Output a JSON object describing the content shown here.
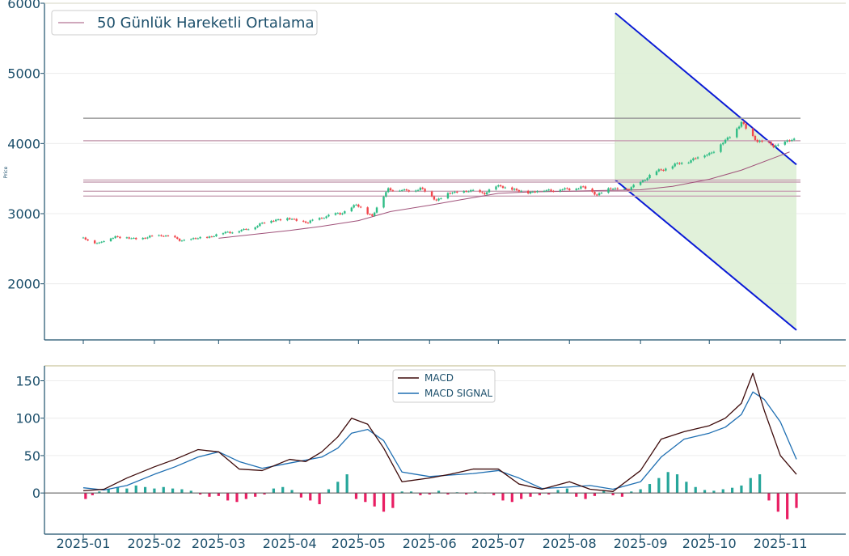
{
  "chart_data": [
    {
      "type": "candlestick",
      "ylabel": "Price",
      "ylim": [
        1200,
        6000
      ],
      "yticks": [
        2000,
        3000,
        4000,
        5000,
        6000
      ],
      "grid": true,
      "legend": {
        "placement": "top-left",
        "entries": [
          "50 Günlük Hareketli Ortalama"
        ]
      },
      "colors": {
        "up": "#2ebd85",
        "down": "#f2474d",
        "ma": "#a0527a",
        "channel": "#0a1ad6",
        "channel_fill": "#dff0d8",
        "hline_gray": "#999999",
        "hline_pink": "#c9a3b5",
        "axis": "#1c4f6b"
      },
      "horizontal_levels": [
        {
          "value": 4360,
          "style": "gray"
        },
        {
          "value": 4040,
          "style": "pink"
        },
        {
          "value": 3480,
          "style": "pink"
        },
        {
          "value": 3450,
          "style": "pink"
        },
        {
          "value": 3320,
          "style": "pink"
        },
        {
          "value": 3250,
          "style": "pink"
        }
      ],
      "channel": {
        "start_date": "2025-08-21",
        "end_date": "2025-11-08",
        "upper": [
          5860,
          3700
        ],
        "lower": [
          3480,
          1340
        ]
      },
      "close_series": {
        "x": [
          "2025-01-01",
          "2025-01-08",
          "2025-01-15",
          "2025-01-22",
          "2025-01-29",
          "2025-02-05",
          "2025-02-12",
          "2025-02-19",
          "2025-02-26",
          "2025-03-05",
          "2025-03-12",
          "2025-03-19",
          "2025-03-26",
          "2025-04-02",
          "2025-04-09",
          "2025-04-16",
          "2025-04-23",
          "2025-04-30",
          "2025-05-07",
          "2025-05-14",
          "2025-05-21",
          "2025-05-28",
          "2025-06-04",
          "2025-06-11",
          "2025-06-18",
          "2025-06-25",
          "2025-07-02",
          "2025-07-09",
          "2025-07-16",
          "2025-07-23",
          "2025-07-30",
          "2025-08-06",
          "2025-08-13",
          "2025-08-20",
          "2025-08-27",
          "2025-09-03",
          "2025-09-10",
          "2025-09-17",
          "2025-09-24",
          "2025-10-01",
          "2025-10-08",
          "2025-10-15",
          "2025-10-18",
          "2025-10-22",
          "2025-10-29",
          "2025-11-05"
        ],
        "y": [
          2640,
          2580,
          2680,
          2640,
          2660,
          2700,
          2620,
          2640,
          2680,
          2740,
          2760,
          2850,
          2920,
          2920,
          2870,
          2960,
          3000,
          3120,
          2970,
          3360,
          3320,
          3360,
          3200,
          3300,
          3320,
          3300,
          3400,
          3320,
          3310,
          3340,
          3340,
          3380,
          3280,
          3360,
          3340,
          3500,
          3630,
          3700,
          3780,
          3860,
          4030,
          4300,
          4150,
          4050,
          3960,
          4040
        ]
      },
      "moving_average": {
        "x": [
          "2025-03-01",
          "2025-03-15",
          "2025-04-01",
          "2025-04-15",
          "2025-05-01",
          "2025-05-15",
          "2025-06-01",
          "2025-06-15",
          "2025-07-01",
          "2025-07-15",
          "2025-08-01",
          "2025-08-15",
          "2025-09-01",
          "2025-09-15",
          "2025-10-01",
          "2025-10-15",
          "2025-11-01",
          "2025-11-05"
        ],
        "y": [
          2650,
          2700,
          2760,
          2820,
          2900,
          3030,
          3120,
          3200,
          3290,
          3310,
          3320,
          3330,
          3340,
          3390,
          3490,
          3620,
          3830,
          3880
        ]
      }
    },
    {
      "type": "line",
      "ylim": [
        -55,
        170
      ],
      "yticks": [
        0,
        50,
        100,
        150
      ],
      "grid": true,
      "xticks": [
        "2025-01",
        "2025-02",
        "2025-03",
        "2025-04",
        "2025-05",
        "2025-06",
        "2025-07",
        "2025-08",
        "2025-09",
        "2025-10",
        "2025-11"
      ],
      "legend": {
        "placement": "top-center"
      },
      "series": [
        {
          "name": "MACD",
          "color": "#3d0a0a",
          "x": [
            "2025-01-01",
            "2025-01-10",
            "2025-01-20",
            "2025-02-01",
            "2025-02-10",
            "2025-02-20",
            "2025-03-01",
            "2025-03-10",
            "2025-03-20",
            "2025-04-01",
            "2025-04-08",
            "2025-04-15",
            "2025-04-22",
            "2025-04-28",
            "2025-05-05",
            "2025-05-12",
            "2025-05-20",
            "2025-06-01",
            "2025-06-10",
            "2025-06-20",
            "2025-07-01",
            "2025-07-10",
            "2025-07-20",
            "2025-08-01",
            "2025-08-10",
            "2025-08-20",
            "2025-09-01",
            "2025-09-10",
            "2025-09-20",
            "2025-10-01",
            "2025-10-08",
            "2025-10-15",
            "2025-10-20",
            "2025-10-25",
            "2025-11-01",
            "2025-11-08"
          ],
          "y": [
            3,
            5,
            20,
            35,
            45,
            58,
            55,
            32,
            30,
            45,
            42,
            55,
            75,
            100,
            92,
            60,
            15,
            20,
            25,
            32,
            32,
            12,
            5,
            15,
            5,
            2,
            30,
            72,
            82,
            90,
            100,
            120,
            160,
            110,
            50,
            25
          ]
        },
        {
          "name": "MACD SIGNAL",
          "color": "#1f6fb2",
          "x": [
            "2025-01-01",
            "2025-01-10",
            "2025-01-20",
            "2025-02-01",
            "2025-02-10",
            "2025-02-20",
            "2025-03-01",
            "2025-03-10",
            "2025-03-20",
            "2025-04-01",
            "2025-04-08",
            "2025-04-15",
            "2025-04-22",
            "2025-04-28",
            "2025-05-05",
            "2025-05-12",
            "2025-05-20",
            "2025-06-01",
            "2025-06-10",
            "2025-06-20",
            "2025-07-01",
            "2025-07-10",
            "2025-07-20",
            "2025-08-01",
            "2025-08-10",
            "2025-08-20",
            "2025-09-01",
            "2025-09-10",
            "2025-09-20",
            "2025-10-01",
            "2025-10-08",
            "2025-10-15",
            "2025-10-20",
            "2025-10-25",
            "2025-11-01",
            "2025-11-08"
          ],
          "y": [
            7,
            4,
            10,
            25,
            35,
            48,
            55,
            42,
            33,
            40,
            44,
            48,
            60,
            80,
            85,
            70,
            28,
            22,
            24,
            26,
            30,
            20,
            6,
            8,
            10,
            5,
            15,
            48,
            72,
            80,
            88,
            105,
            135,
            125,
            95,
            45
          ]
        },
        {
          "name": "",
          "type": "bar",
          "colors": {
            "positive": "#26a69a",
            "negative": "#e91e63"
          },
          "x": [
            "2025-01-02",
            "2025-01-05",
            "2025-01-08",
            "2025-01-12",
            "2025-01-16",
            "2025-01-20",
            "2025-01-24",
            "2025-01-28",
            "2025-02-01",
            "2025-02-05",
            "2025-02-09",
            "2025-02-13",
            "2025-02-17",
            "2025-02-21",
            "2025-02-25",
            "2025-03-01",
            "2025-03-05",
            "2025-03-09",
            "2025-03-13",
            "2025-03-17",
            "2025-03-21",
            "2025-03-25",
            "2025-03-29",
            "2025-04-02",
            "2025-04-06",
            "2025-04-10",
            "2025-04-14",
            "2025-04-18",
            "2025-04-22",
            "2025-04-26",
            "2025-04-30",
            "2025-05-04",
            "2025-05-08",
            "2025-05-12",
            "2025-05-16",
            "2025-05-20",
            "2025-05-24",
            "2025-05-28",
            "2025-06-01",
            "2025-06-05",
            "2025-06-09",
            "2025-06-13",
            "2025-06-17",
            "2025-06-21",
            "2025-06-25",
            "2025-06-29",
            "2025-07-03",
            "2025-07-07",
            "2025-07-11",
            "2025-07-15",
            "2025-07-19",
            "2025-07-23",
            "2025-07-27",
            "2025-07-31",
            "2025-08-04",
            "2025-08-08",
            "2025-08-12",
            "2025-08-16",
            "2025-08-20",
            "2025-08-24",
            "2025-08-28",
            "2025-09-01",
            "2025-09-05",
            "2025-09-09",
            "2025-09-13",
            "2025-09-17",
            "2025-09-21",
            "2025-09-25",
            "2025-09-29",
            "2025-10-03",
            "2025-10-07",
            "2025-10-11",
            "2025-10-15",
            "2025-10-19",
            "2025-10-23",
            "2025-10-27",
            "2025-10-31",
            "2025-11-04",
            "2025-11-08"
          ],
          "y": [
            -8,
            -3,
            2,
            5,
            8,
            6,
            10,
            8,
            6,
            8,
            6,
            5,
            3,
            -2,
            -5,
            -4,
            -10,
            -12,
            -8,
            -5,
            -2,
            6,
            8,
            4,
            -6,
            -10,
            -15,
            5,
            15,
            25,
            -8,
            -12,
            -18,
            -25,
            -20,
            2,
            2,
            -3,
            -2,
            3,
            -2,
            1,
            -2,
            2,
            0,
            -3,
            -10,
            -12,
            -8,
            -5,
            -3,
            -2,
            4,
            6,
            -5,
            -8,
            -4,
            3,
            -3,
            -5,
            2,
            5,
            12,
            20,
            28,
            25,
            15,
            8,
            4,
            3,
            5,
            7,
            10,
            20,
            25,
            -10,
            -25,
            -35,
            -20
          ]
        }
      ]
    }
  ]
}
